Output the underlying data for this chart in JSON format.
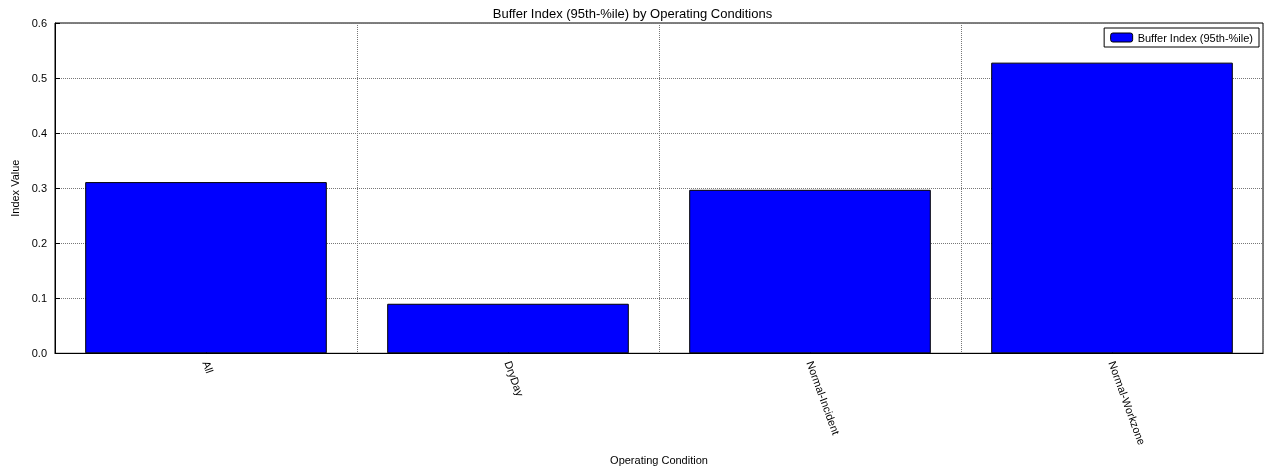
{
  "chart_data": {
    "type": "bar",
    "title": "Buffer Index (95th-%ile) by Operating Conditions",
    "xlabel": "Operating Condition",
    "ylabel": "Index Value",
    "categories": [
      "All",
      "DryDay",
      "Normal-Incident",
      "Normal-Workzone"
    ],
    "series": [
      {
        "name": "Buffer Index (95th-%ile)",
        "color": "#0000ff",
        "values": [
          0.311,
          0.09,
          0.297,
          0.528
        ]
      }
    ],
    "ylim": [
      0,
      0.6
    ],
    "yticks": [
      {
        "value": 0,
        "label": "0.0"
      },
      {
        "value": 0.1,
        "label": "0.1"
      },
      {
        "value": 0.2,
        "label": "0.2"
      },
      {
        "value": 0.3,
        "label": "0.3"
      },
      {
        "value": 0.4,
        "label": "0.4"
      },
      {
        "value": 0.5,
        "label": "0.5"
      },
      {
        "value": 0.6,
        "label": "0.6"
      }
    ],
    "grid": true,
    "legend": "top right"
  }
}
